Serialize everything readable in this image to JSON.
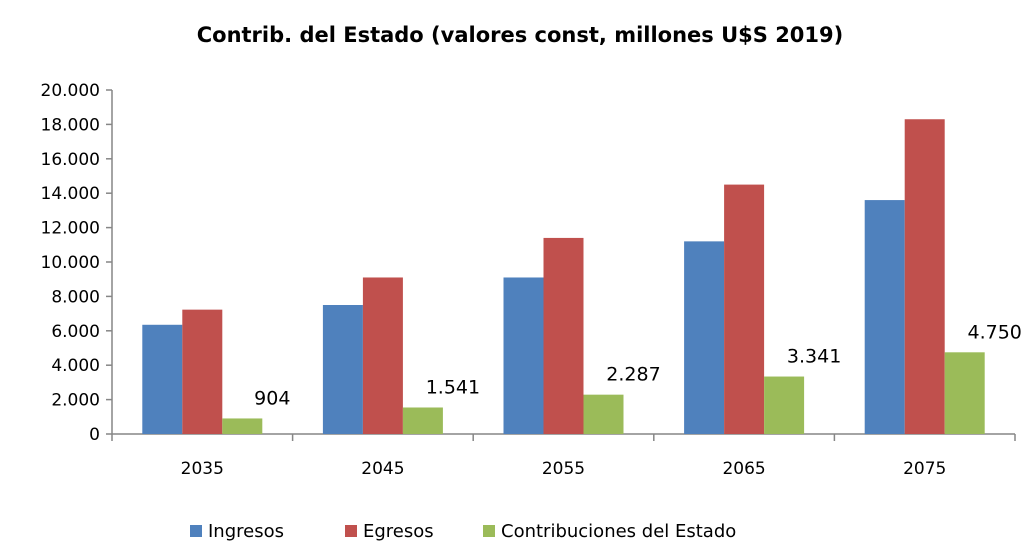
{
  "chart_data": {
    "type": "bar",
    "title": "Contrib. del Estado (valores const, millones U$S 2019)",
    "xlabel": "",
    "ylabel": "",
    "categories": [
      "2035",
      "2045",
      "2055",
      "2065",
      "2075"
    ],
    "ylim": [
      0,
      20000
    ],
    "yticks": [
      "0",
      "2.000",
      "4.000",
      "6.000",
      "8.000",
      "10.000",
      "12.000",
      "14.000",
      "16.000",
      "18.000",
      "20.000"
    ],
    "ytick_values": [
      0,
      2000,
      4000,
      6000,
      8000,
      10000,
      12000,
      14000,
      16000,
      18000,
      20000
    ],
    "grid": false,
    "legend_position": "bottom",
    "series": [
      {
        "name": "Ingresos",
        "color": "#4F81BD",
        "values": [
          6350,
          7500,
          9100,
          11200,
          13600
        ]
      },
      {
        "name": "Egresos",
        "color": "#C0504D",
        "values": [
          7230,
          9100,
          11400,
          14500,
          18300
        ]
      },
      {
        "name": "Contribuciones del Estado",
        "color": "#9BBB59",
        "values": [
          904,
          1541,
          2287,
          3341,
          4750
        ],
        "data_labels": [
          "904",
          "1.541",
          "2.287",
          "3.341",
          "4.750"
        ]
      }
    ]
  }
}
